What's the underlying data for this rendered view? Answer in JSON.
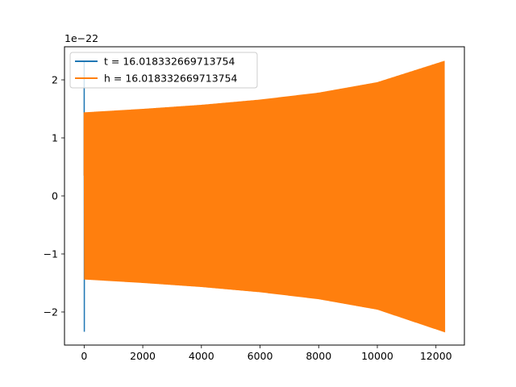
{
  "chart_data": {
    "type": "line",
    "title": "",
    "xlabel": "",
    "ylabel": "",
    "y_offset_label": "1e−22",
    "xlim": [
      -670,
      12970
    ],
    "ylim": [
      -2.57,
      2.57
    ],
    "x_ticks": [
      0,
      2000,
      4000,
      6000,
      8000,
      10000,
      12000
    ],
    "x_tick_labels": [
      "0",
      "2000",
      "4000",
      "6000",
      "8000",
      "10000",
      "12000"
    ],
    "y_ticks": [
      -2,
      -1,
      0,
      1,
      2
    ],
    "y_tick_labels": [
      "−2",
      "−1",
      "0",
      "1",
      "2"
    ],
    "grid": false,
    "legend_position": "upper-left",
    "series": [
      {
        "name": "t = 16.018332669713754",
        "color": "#1f77b4",
        "description_points": [
          {
            "x": 0,
            "y_max": 2.33,
            "y_min": -2.34
          },
          {
            "x": 40,
            "y_max": 0.4,
            "y_min": -0.4
          }
        ]
      },
      {
        "name": "h = 16.018332669713754",
        "color": "#ff7f0e",
        "envelope_x": [
          0,
          2000,
          4000,
          6000,
          8000,
          10000,
          12300
        ],
        "envelope_upper": [
          1.44,
          1.5,
          1.57,
          1.66,
          1.78,
          1.96,
          2.33
        ],
        "envelope_lower": [
          -1.44,
          -1.5,
          -1.57,
          -1.66,
          -1.78,
          -1.96,
          -2.35
        ]
      }
    ]
  }
}
